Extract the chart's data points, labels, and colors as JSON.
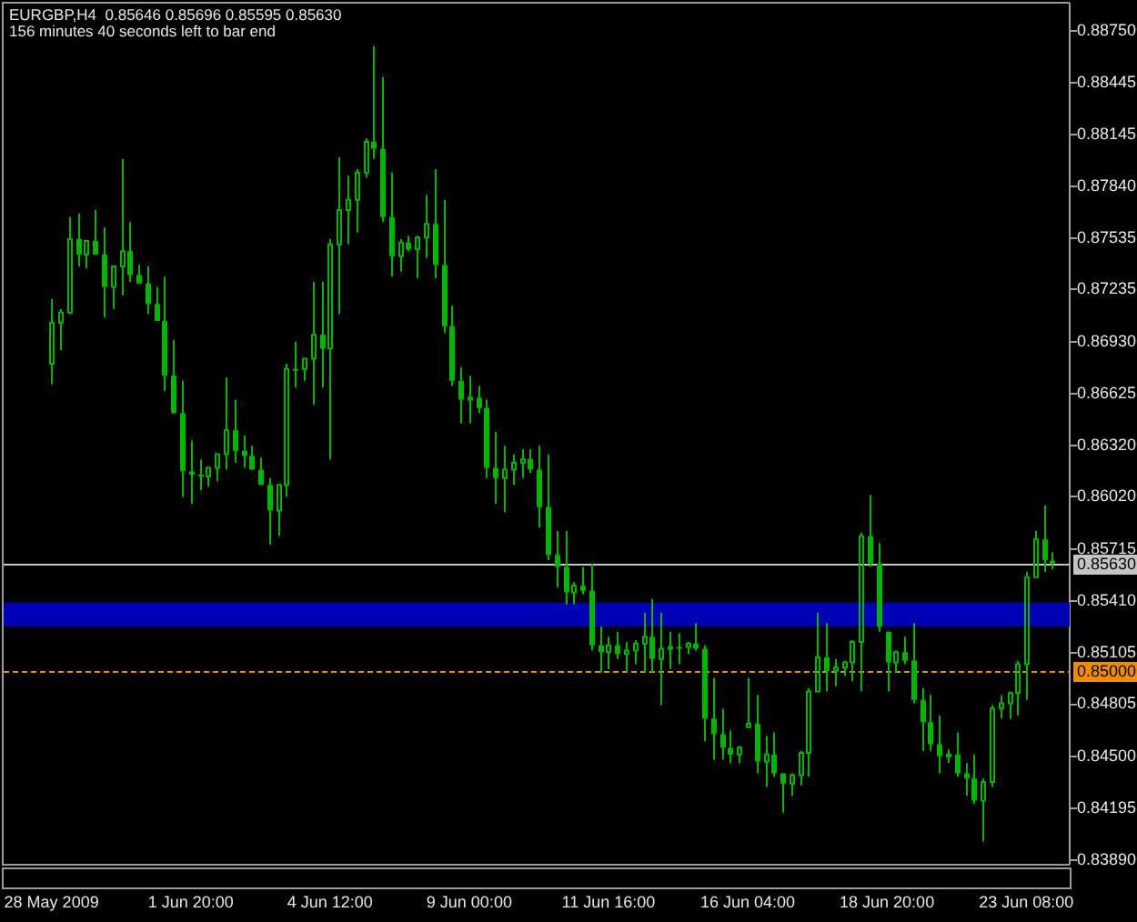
{
  "chart_data": {
    "type": "candlestick",
    "title": "EURGBP,H4  0.85646 0.85696 0.85595 0.85630",
    "subtitle": "156 minutes 40 seconds left to bar end",
    "categories": [
      "28 May 2009",
      null,
      null,
      null,
      null,
      null,
      null,
      null,
      null,
      null,
      null,
      null,
      null,
      null,
      null,
      null,
      "1 Jun 20:00",
      null,
      null,
      null,
      null,
      null,
      null,
      null,
      null,
      null,
      null,
      null,
      null,
      null,
      null,
      null,
      "4 Jun 12:00",
      null,
      null,
      null,
      null,
      null,
      null,
      null,
      null,
      null,
      null,
      null,
      null,
      null,
      null,
      null,
      "9 Jun 00:00",
      null,
      null,
      null,
      null,
      null,
      null,
      null,
      null,
      null,
      null,
      null,
      null,
      null,
      null,
      null,
      "11 Jun 16:00",
      null,
      null,
      null,
      null,
      null,
      null,
      null,
      null,
      null,
      null,
      null,
      null,
      null,
      null,
      null,
      "16 Jun 04:00",
      null,
      null,
      null,
      null,
      null,
      null,
      null,
      null,
      null,
      null,
      null,
      null,
      null,
      null,
      null,
      "18 Jun 20:00",
      null,
      null,
      null,
      null,
      null,
      null,
      null,
      null,
      null,
      null,
      null,
      null,
      null,
      null,
      null,
      "23 Jun 08:00",
      null,
      null,
      null
    ],
    "ohlc": [
      [
        0.868,
        0.8718,
        0.8668,
        0.8704
      ],
      [
        0.8704,
        0.8712,
        0.8688,
        0.871
      ],
      [
        0.871,
        0.8766,
        0.8709,
        0.8753
      ],
      [
        0.8753,
        0.8768,
        0.8737,
        0.8744
      ],
      [
        0.8744,
        0.8752,
        0.8736,
        0.8752
      ],
      [
        0.8752,
        0.877,
        0.8744,
        0.8744
      ],
      [
        0.8744,
        0.876,
        0.8707,
        0.8725
      ],
      [
        0.8725,
        0.8737,
        0.8712,
        0.8737
      ],
      [
        0.8737,
        0.88,
        0.872,
        0.8746
      ],
      [
        0.8746,
        0.8763,
        0.8728,
        0.8732
      ],
      [
        0.8732,
        0.8738,
        0.8727,
        0.8727
      ],
      [
        0.8727,
        0.8737,
        0.8709,
        0.8715
      ],
      [
        0.8715,
        0.8725,
        0.8705,
        0.8705
      ],
      [
        0.8705,
        0.8731,
        0.8664,
        0.8673
      ],
      [
        0.8673,
        0.8694,
        0.8651,
        0.8651
      ],
      [
        0.8651,
        0.867,
        0.8602,
        0.8617
      ],
      [
        0.8617,
        0.8635,
        0.8598,
        0.8615
      ],
      [
        0.8615,
        0.8624,
        0.8606,
        0.8614
      ],
      [
        0.8614,
        0.8619,
        0.8608,
        0.8619
      ],
      [
        0.8619,
        0.8627,
        0.8611,
        0.8627
      ],
      [
        0.8627,
        0.8672,
        0.8618,
        0.8641
      ],
      [
        0.8641,
        0.8659,
        0.8622,
        0.8629
      ],
      [
        0.8629,
        0.8638,
        0.8619,
        0.8626
      ],
      [
        0.8626,
        0.8632,
        0.8618,
        0.8618
      ],
      [
        0.8618,
        0.8625,
        0.8609,
        0.8609
      ],
      [
        0.8609,
        0.8613,
        0.8574,
        0.8594
      ],
      [
        0.8594,
        0.8609,
        0.8579,
        0.8609
      ],
      [
        0.8609,
        0.868,
        0.8602,
        0.8677
      ],
      [
        0.8677,
        0.8693,
        0.8666,
        0.8677
      ],
      [
        0.8677,
        0.8683,
        0.867,
        0.8683
      ],
      [
        0.8683,
        0.8728,
        0.8656,
        0.8697
      ],
      [
        0.8697,
        0.8728,
        0.8666,
        0.8689
      ],
      [
        0.8689,
        0.8753,
        0.8624,
        0.875
      ],
      [
        0.875,
        0.8801,
        0.8709,
        0.877
      ],
      [
        0.877,
        0.879,
        0.875,
        0.8776
      ],
      [
        0.8776,
        0.8794,
        0.8757,
        0.8792
      ],
      [
        0.8792,
        0.8812,
        0.8789,
        0.881
      ],
      [
        0.881,
        0.8866,
        0.88,
        0.8806
      ],
      [
        0.8806,
        0.8848,
        0.8763,
        0.8766
      ],
      [
        0.8766,
        0.8792,
        0.8731,
        0.8743
      ],
      [
        0.8743,
        0.8753,
        0.8734,
        0.8751
      ],
      [
        0.8751,
        0.8755,
        0.8746,
        0.8747
      ],
      [
        0.8747,
        0.8755,
        0.873,
        0.8754
      ],
      [
        0.8754,
        0.8779,
        0.8742,
        0.8762
      ],
      [
        0.8762,
        0.8794,
        0.873,
        0.8738
      ],
      [
        0.8738,
        0.8776,
        0.8698,
        0.8702
      ],
      [
        0.8702,
        0.8714,
        0.8667,
        0.867
      ],
      [
        0.867,
        0.8678,
        0.8645,
        0.8659
      ],
      [
        0.8659,
        0.8673,
        0.8645,
        0.866
      ],
      [
        0.866,
        0.8667,
        0.8651,
        0.8654
      ],
      [
        0.8654,
        0.8659,
        0.8613,
        0.8619
      ],
      [
        0.8619,
        0.864,
        0.8598,
        0.8613
      ],
      [
        0.8613,
        0.8632,
        0.8593,
        0.8618
      ],
      [
        0.8618,
        0.8627,
        0.8609,
        0.8622
      ],
      [
        0.8622,
        0.863,
        0.8613,
        0.8624
      ],
      [
        0.8624,
        0.863,
        0.8616,
        0.8618
      ],
      [
        0.8618,
        0.8632,
        0.8584,
        0.8596
      ],
      [
        0.8596,
        0.8627,
        0.8565,
        0.8568
      ],
      [
        0.8568,
        0.8582,
        0.8549,
        0.8561
      ],
      [
        0.8561,
        0.8582,
        0.8539,
        0.8546
      ],
      [
        0.8546,
        0.8552,
        0.8539,
        0.855
      ],
      [
        0.855,
        0.8561,
        0.8545,
        0.8547
      ],
      [
        0.8547,
        0.8563,
        0.8512,
        0.8515
      ],
      [
        0.8515,
        0.8526,
        0.8499,
        0.8511
      ],
      [
        0.8511,
        0.852,
        0.8501,
        0.8515
      ],
      [
        0.8515,
        0.8523,
        0.8507,
        0.851
      ],
      [
        0.851,
        0.8517,
        0.8499,
        0.8512
      ],
      [
        0.8512,
        0.8518,
        0.8504,
        0.8516
      ],
      [
        0.8516,
        0.8534,
        0.8499,
        0.852
      ],
      [
        0.852,
        0.8542,
        0.8499,
        0.8507
      ],
      [
        0.8507,
        0.8534,
        0.848,
        0.8513
      ],
      [
        0.8513,
        0.8523,
        0.8501,
        0.8514
      ],
      [
        0.8514,
        0.8522,
        0.8504,
        0.8514
      ],
      [
        0.8514,
        0.8517,
        0.851,
        0.8516
      ],
      [
        0.8516,
        0.8528,
        0.8512,
        0.8513
      ],
      [
        0.8513,
        0.8515,
        0.8459,
        0.8472
      ],
      [
        0.8472,
        0.8496,
        0.8448,
        0.8463
      ],
      [
        0.8463,
        0.8478,
        0.8448,
        0.8455
      ],
      [
        0.8455,
        0.8465,
        0.8446,
        0.8451
      ],
      [
        0.8451,
        0.8456,
        0.8446,
        0.8455
      ],
      [
        0.8467,
        0.8496,
        0.8467,
        0.8469
      ],
      [
        0.8469,
        0.8486,
        0.844,
        0.8447
      ],
      [
        0.8447,
        0.8462,
        0.8432,
        0.8451
      ],
      [
        0.8451,
        0.8464,
        0.8438,
        0.844
      ],
      [
        0.844,
        0.844,
        0.8417,
        0.8434
      ],
      [
        0.8434,
        0.844,
        0.8427,
        0.8439
      ],
      [
        0.8439,
        0.8453,
        0.8433,
        0.8452
      ],
      [
        0.8452,
        0.849,
        0.8438,
        0.8488
      ],
      [
        0.8488,
        0.8534,
        0.8488,
        0.8508
      ],
      [
        0.8508,
        0.8528,
        0.8488,
        0.85
      ],
      [
        0.85,
        0.8507,
        0.8491,
        0.8502
      ],
      [
        0.8502,
        0.8506,
        0.8497,
        0.8505
      ],
      [
        0.8505,
        0.8518,
        0.8494,
        0.8517
      ],
      [
        0.8517,
        0.8581,
        0.8488,
        0.8579
      ],
      [
        0.8579,
        0.8603,
        0.8561,
        0.8563
      ],
      [
        0.8563,
        0.8575,
        0.8523,
        0.8526
      ],
      [
        0.8523,
        0.8523,
        0.8488,
        0.8505
      ],
      [
        0.8505,
        0.8512,
        0.8499,
        0.8511
      ],
      [
        0.8511,
        0.852,
        0.8504,
        0.8506
      ],
      [
        0.8506,
        0.8528,
        0.8481,
        0.8483
      ],
      [
        0.8483,
        0.849,
        0.8453,
        0.847
      ],
      [
        0.847,
        0.8486,
        0.8453,
        0.8457
      ],
      [
        0.8457,
        0.8474,
        0.844,
        0.845
      ],
      [
        0.845,
        0.8454,
        0.8446,
        0.8451
      ],
      [
        0.8451,
        0.8464,
        0.8438,
        0.844
      ],
      [
        0.844,
        0.8446,
        0.8427,
        0.8437
      ],
      [
        0.8437,
        0.8451,
        0.8422,
        0.8424
      ],
      [
        0.8424,
        0.8437,
        0.84,
        0.8435
      ],
      [
        0.8435,
        0.848,
        0.8432,
        0.8478
      ],
      [
        0.8478,
        0.8486,
        0.8472,
        0.8481
      ],
      [
        0.8481,
        0.8488,
        0.8472,
        0.8487
      ],
      [
        0.8487,
        0.8506,
        0.8474,
        0.8504
      ],
      [
        0.8504,
        0.8558,
        0.8483,
        0.8555
      ],
      [
        0.8555,
        0.8582,
        0.8555,
        0.8577
      ],
      [
        0.8577,
        0.8597,
        0.8558,
        0.8565
      ],
      [
        0.85646,
        0.85696,
        0.85595,
        0.8563
      ]
    ],
    "color": "#00b800",
    "ylim": [
      0.8387,
      0.8891
    ],
    "yticks": [
      {
        "value": 0.8875,
        "label": "0.88750"
      },
      {
        "value": 0.88445,
        "label": "0.88445"
      },
      {
        "value": 0.88145,
        "label": "0.88145"
      },
      {
        "value": 0.8784,
        "label": "0.87840"
      },
      {
        "value": 0.87535,
        "label": "0.87535"
      },
      {
        "value": 0.87235,
        "label": "0.87235"
      },
      {
        "value": 0.8693,
        "label": "0.86930"
      },
      {
        "value": 0.86625,
        "label": "0.86625"
      },
      {
        "value": 0.8632,
        "label": "0.86320"
      },
      {
        "value": 0.8602,
        "label": "0.86020"
      },
      {
        "value": 0.85715,
        "label": "0.85715"
      },
      {
        "value": 0.8541,
        "label": "0.85410"
      },
      {
        "value": 0.85105,
        "label": "0.85105"
      },
      {
        "value": 0.84805,
        "label": "0.84805"
      },
      {
        "value": 0.845,
        "label": "0.84500"
      },
      {
        "value": 0.84195,
        "label": "0.84195"
      },
      {
        "value": 0.8389,
        "label": "0.83890"
      }
    ],
    "ref_lines": [
      {
        "axis": "y",
        "value": 0.8563,
        "label": "0.85630",
        "color": "#c4c4c4",
        "line_style": "solid"
      },
      {
        "axis": "y",
        "value": 0.85,
        "label": "0.85000",
        "color": "#f08c00",
        "line_style": "dashed"
      }
    ],
    "bands": [
      {
        "axis": "y",
        "from": 0.8526,
        "to": 0.854,
        "color": "#0000b4"
      }
    ]
  }
}
